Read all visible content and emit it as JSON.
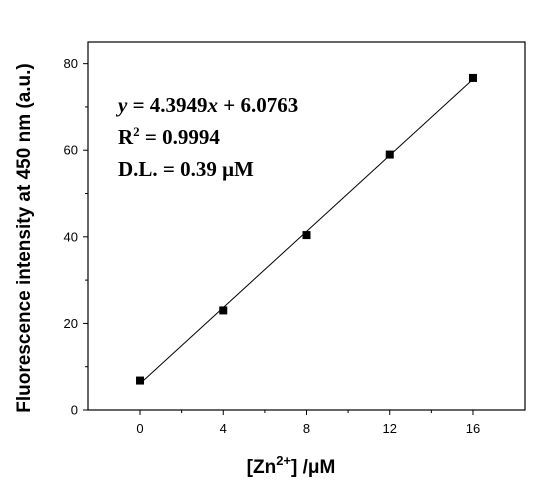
{
  "chart_data": {
    "type": "scatter",
    "title": "",
    "xlabel": {
      "main": "[Zn",
      "superscript": "2+",
      "suffix": "] /μM"
    },
    "ylabel": "Fluorescence intensity at 450 nm (a.u.)",
    "xlim": [
      -2.5,
      18.5
    ],
    "ylim": [
      0,
      85
    ],
    "x_ticks": [
      0,
      4,
      8,
      12,
      16
    ],
    "y_ticks": [
      0,
      20,
      40,
      60,
      80
    ],
    "grid": false,
    "series": [
      {
        "marker": "square",
        "x": [
          0,
          4,
          8,
          12,
          16
        ],
        "y": [
          6.8,
          23.0,
          40.4,
          59.0,
          76.7
        ]
      }
    ],
    "fit_line": {
      "slope": 4.3949,
      "intercept": 6.0763,
      "x_range": [
        0,
        16
      ]
    },
    "annotations": {
      "equation": {
        "y": "y",
        "eq_a": " = 4.3949",
        "x": "x",
        "eq_b": " + 6.0763"
      },
      "r2": {
        "base": "R",
        "sup": "2",
        "rest": " = 0.9994"
      },
      "detection_limit": "D.L. = 0.39 μM"
    }
  }
}
